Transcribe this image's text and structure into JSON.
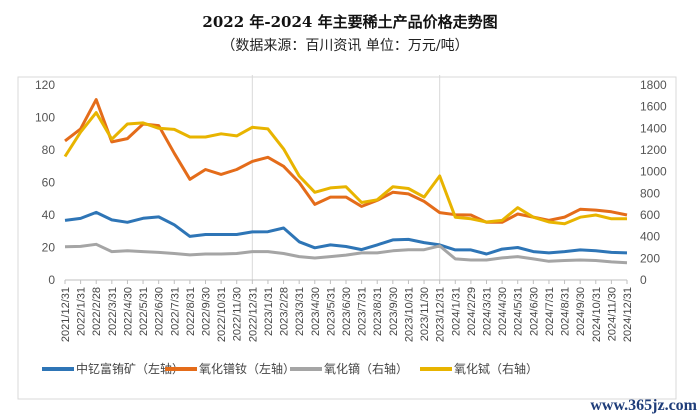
{
  "chart_data": {
    "type": "line",
    "title": "2022 年-2024 年主要稀土产品价格走势图",
    "subtitle": "（数据来源：百川资讯      单位：万元/吨）",
    "x": [
      "2021/12/31",
      "2022/1/31",
      "2022/2/28",
      "2022/3/31",
      "2022/4/30",
      "2022/5/31",
      "2022/6/30",
      "2022/7/31",
      "2022/8/31",
      "2022/9/30",
      "2022/10/31",
      "2022/11/30",
      "2022/12/31",
      "2023/1/31",
      "2023/2/28",
      "2023/3/31",
      "2023/4/30",
      "2023/5/31",
      "2023/6/30",
      "2023/7/31",
      "2023/8/31",
      "2023/9/30",
      "2023/10/31",
      "2023/11/30",
      "2023/12/31",
      "2024/1/31",
      "2024/2/29",
      "2024/3/31",
      "2024/4/30",
      "2024/5/31",
      "2024/6/30",
      "2024/7/31",
      "2024/8/31",
      "2024/9/30",
      "2024/10/31",
      "2024/11/30",
      "2024/12/31"
    ],
    "left_axis": {
      "ylim": [
        0,
        120
      ],
      "ticks": [
        "0",
        "20",
        "40",
        "60",
        "80",
        "100",
        "120"
      ]
    },
    "right_axis": {
      "ylim": [
        0,
        1800
      ],
      "ticks": [
        "0",
        "200",
        "400",
        "600",
        "800",
        "1000",
        "1200",
        "1400",
        "1600",
        "1800"
      ]
    },
    "grid": "vertical lines at year ends",
    "legend_position": "bottom",
    "series": [
      {
        "name": "中钇富铕矿（左轴）",
        "axis": "left",
        "color": "#2e75b6",
        "values": [
          36.7,
          37.9,
          41.6,
          37,
          35.5,
          38,
          38.8,
          34,
          26.8,
          28,
          28,
          28,
          29.6,
          29.7,
          32,
          23.5,
          19.8,
          21.6,
          20.6,
          18.7,
          21.6,
          24.7,
          25,
          23,
          21.6,
          18.5,
          18.5,
          16,
          19,
          20,
          17.5,
          16.7,
          17.5,
          18.5,
          18,
          17,
          16.7
        ]
      },
      {
        "name": "氧化镨钕（左轴）",
        "axis": "left",
        "color": "#e46c1a",
        "values": [
          85.6,
          93,
          111,
          85,
          87,
          96,
          95,
          78,
          62,
          68,
          65,
          68,
          73,
          75.5,
          70,
          60,
          46.5,
          51,
          51,
          45.3,
          49,
          54,
          53,
          48.4,
          41.5,
          40.2,
          40,
          35.5,
          35.5,
          40.6,
          38.7,
          36.7,
          38.7,
          43.5,
          43,
          42,
          40
        ]
      },
      {
        "name": "氧化镝（右轴）",
        "axis": "right",
        "color": "#a5a5a5",
        "values": [
          306,
          310,
          330,
          262,
          270,
          262,
          255,
          245,
          232,
          240,
          240,
          245,
          262,
          262,
          245,
          216,
          203,
          216,
          230,
          250,
          250,
          270,
          280,
          280,
          315,
          195,
          185,
          185,
          204,
          216,
          195,
          173,
          180,
          185,
          180,
          167,
          160
        ]
      },
      {
        "name": "氧化铽（右轴）",
        "axis": "right",
        "color": "#e8b400",
        "values": [
          1140,
          1365,
          1545,
          1300,
          1440,
          1450,
          1400,
          1390,
          1320,
          1320,
          1350,
          1330,
          1410,
          1395,
          1210,
          960,
          810,
          850,
          860,
          715,
          740,
          860,
          845,
          765,
          960,
          580,
          565,
          535,
          550,
          668,
          580,
          535,
          520,
          580,
          600,
          565,
          565
        ]
      }
    ]
  },
  "watermark": "www.365jz.com"
}
